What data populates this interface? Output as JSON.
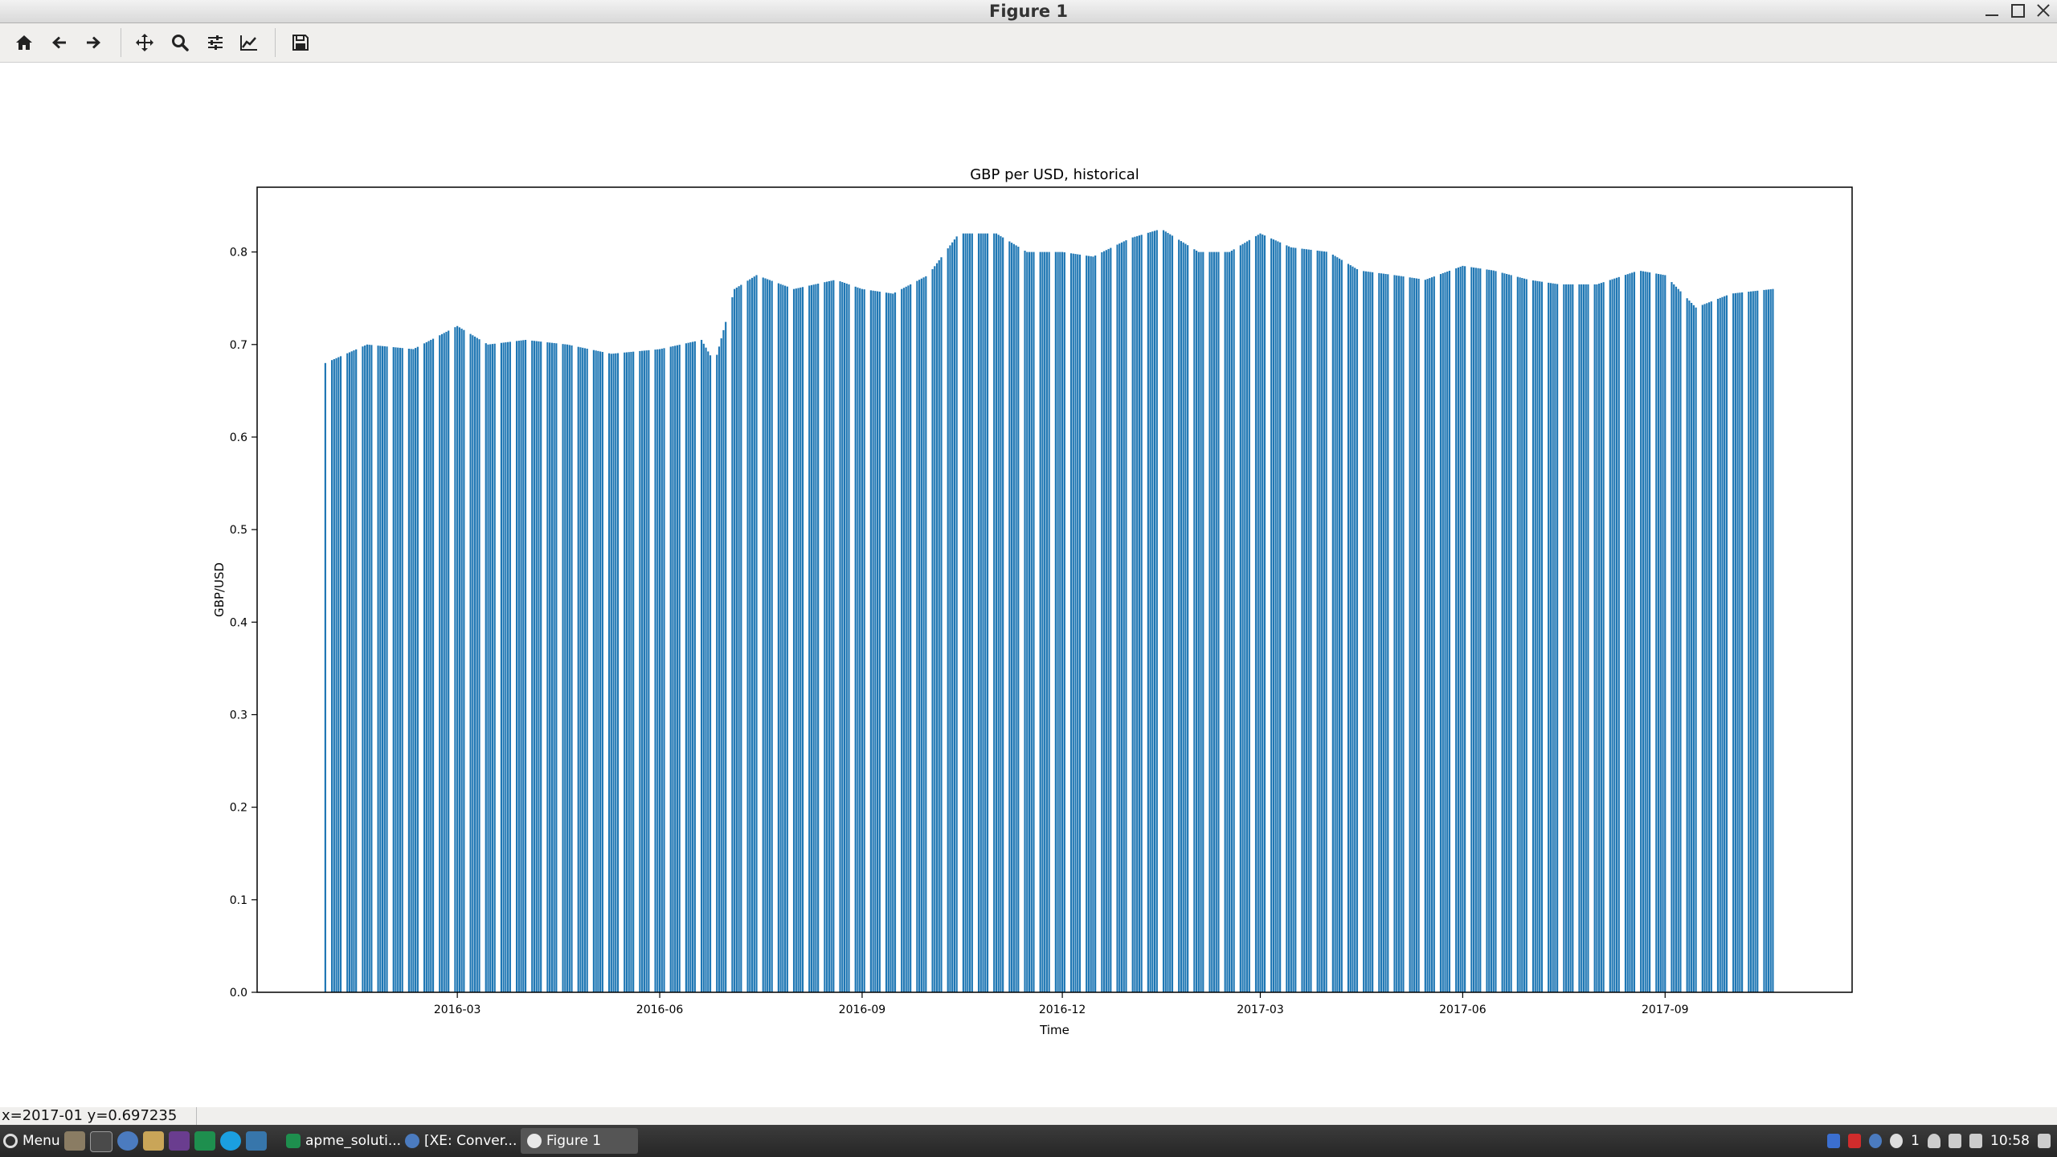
{
  "window": {
    "title": "Figure 1"
  },
  "toolbar": {
    "buttons": [
      {
        "name": "home",
        "icon": "home-icon"
      },
      {
        "name": "back",
        "icon": "arrow-left-icon"
      },
      {
        "name": "forward",
        "icon": "arrow-right-icon"
      },
      {
        "name": "pan",
        "icon": "move-icon"
      },
      {
        "name": "zoom",
        "icon": "magnifier-icon"
      },
      {
        "name": "subplots",
        "icon": "sliders-icon"
      },
      {
        "name": "edit-axes",
        "icon": "line-chart-icon"
      },
      {
        "name": "save",
        "icon": "floppy-disk-icon"
      }
    ]
  },
  "status": {
    "coords": "x=2017-01 y=0.697235"
  },
  "taskbar": {
    "menu_label": "Menu",
    "tasks": [
      {
        "label": "apme_soluti...",
        "active": false
      },
      {
        "label": "[XE: Conver...",
        "active": false
      },
      {
        "label": "Figure 1",
        "active": true
      }
    ],
    "tray_badge": "1",
    "clock": "10:58"
  },
  "chart_data": {
    "type": "bar",
    "title": "GBP per USD, historical",
    "xlabel": "Time",
    "ylabel": "GBP/USD",
    "color": "#1f77b4",
    "ylim": [
      0.0,
      0.87
    ],
    "yticks": [
      "0.0",
      "0.1",
      "0.2",
      "0.3",
      "0.4",
      "0.5",
      "0.6",
      "0.7",
      "0.8"
    ],
    "xlim": [
      "2015-12-01",
      "2017-11-25"
    ],
    "xticks": [
      "2016-03",
      "2016-06",
      "2016-09",
      "2016-12",
      "2017-03",
      "2017-06",
      "2017-09"
    ],
    "grid": false,
    "series": [
      {
        "start": "2016-01-01",
        "end": "2017-10-20",
        "step_days": 1,
        "weekdays_only": true,
        "trend": [
          [
            "2016-01-01",
            0.68
          ],
          [
            "2016-01-20",
            0.7
          ],
          [
            "2016-02-10",
            0.695
          ],
          [
            "2016-03-01",
            0.72
          ],
          [
            "2016-03-15",
            0.7
          ],
          [
            "2016-04-01",
            0.705
          ],
          [
            "2016-04-20",
            0.7
          ],
          [
            "2016-05-10",
            0.69
          ],
          [
            "2016-06-01",
            0.695
          ],
          [
            "2016-06-20",
            0.705
          ],
          [
            "2016-06-26",
            0.68
          ],
          [
            "2016-07-05",
            0.76
          ],
          [
            "2016-07-15",
            0.775
          ],
          [
            "2016-08-01",
            0.76
          ],
          [
            "2016-08-20",
            0.77
          ],
          [
            "2016-09-01",
            0.76
          ],
          [
            "2016-09-15",
            0.755
          ],
          [
            "2016-10-01",
            0.775
          ],
          [
            "2016-10-15",
            0.82
          ],
          [
            "2016-11-01",
            0.82
          ],
          [
            "2016-11-15",
            0.8
          ],
          [
            "2016-12-01",
            0.8
          ],
          [
            "2016-12-15",
            0.795
          ],
          [
            "2017-01-01",
            0.815
          ],
          [
            "2017-01-15",
            0.825
          ],
          [
            "2017-02-01",
            0.8
          ],
          [
            "2017-02-15",
            0.8
          ],
          [
            "2017-03-01",
            0.82
          ],
          [
            "2017-03-15",
            0.805
          ],
          [
            "2017-04-01",
            0.8
          ],
          [
            "2017-04-15",
            0.78
          ],
          [
            "2017-05-01",
            0.775
          ],
          [
            "2017-05-15",
            0.77
          ],
          [
            "2017-06-01",
            0.785
          ],
          [
            "2017-06-15",
            0.78
          ],
          [
            "2017-07-01",
            0.77
          ],
          [
            "2017-07-15",
            0.765
          ],
          [
            "2017-08-01",
            0.765
          ],
          [
            "2017-08-20",
            0.78
          ],
          [
            "2017-09-01",
            0.775
          ],
          [
            "2017-09-15",
            0.74
          ],
          [
            "2017-10-01",
            0.755
          ],
          [
            "2017-10-20",
            0.76
          ]
        ]
      }
    ]
  }
}
